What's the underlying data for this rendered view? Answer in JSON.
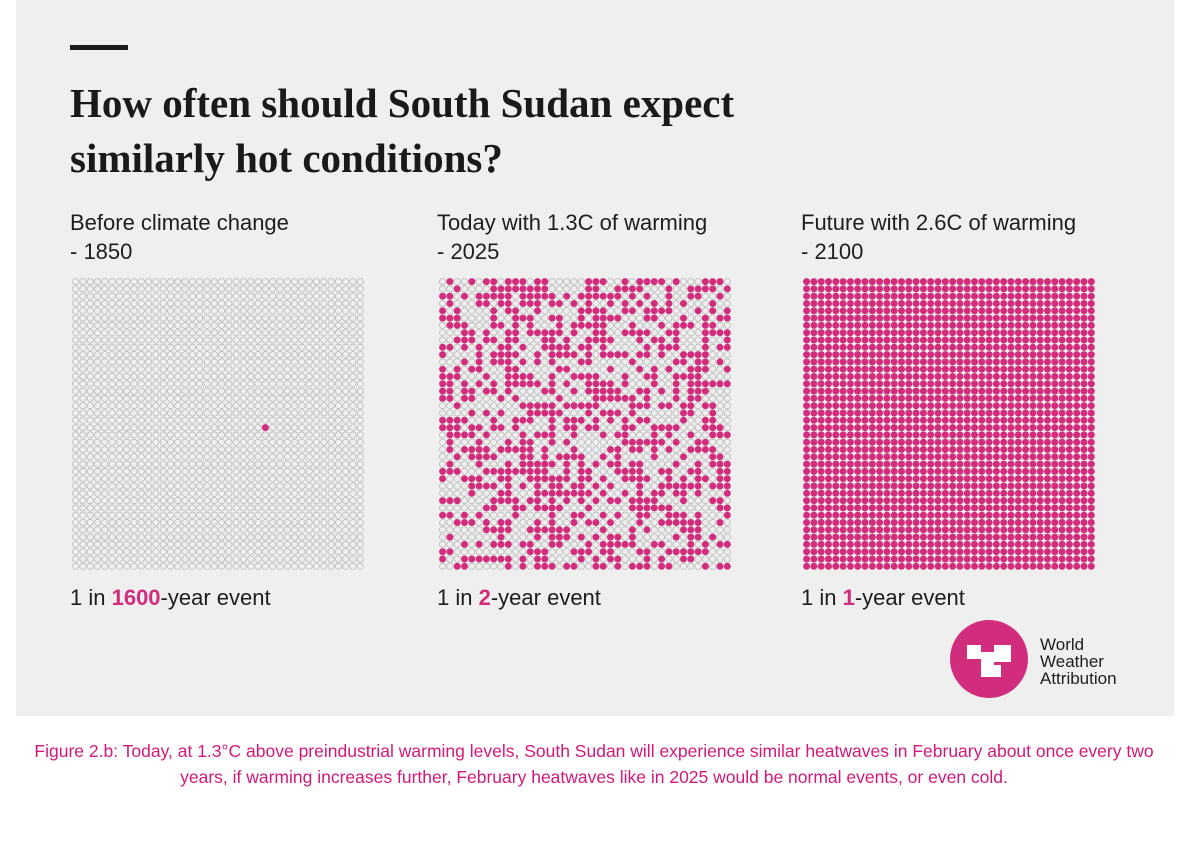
{
  "headline_line1": "How often should South Sudan expect",
  "headline_line2": "similarly hot conditions?",
  "colors": {
    "accent": "#d22d7c",
    "empty_dot_stroke": "#b9b9b9",
    "text": "#1e1e1e",
    "caption": "#d2197b",
    "panel_background": "#efefef"
  },
  "chart_data": {
    "type": "waffle",
    "grid_rows": 40,
    "grid_cols": 40,
    "total_dots": 1600,
    "panels": [
      {
        "title_line1": "Before climate change",
        "title_line2": "- 1850",
        "result_prefix": "1 in ",
        "result_value": "1600",
        "result_suffix": "-year event",
        "return_period_years": 1600,
        "highlighted_fraction": 0.000625
      },
      {
        "title_line1": "Today with 1.3C of warming",
        "title_line2": "- 2025",
        "result_prefix": "1 in ",
        "result_value": "2",
        "result_suffix": "-year event",
        "return_period_years": 2,
        "highlighted_fraction": 0.5
      },
      {
        "title_line1": "Future with 2.6C of warming",
        "title_line2": "- 2100",
        "result_prefix": "1 in ",
        "result_value": "1",
        "result_suffix": "-year event",
        "return_period_years": 1,
        "highlighted_fraction": 1.0
      }
    ]
  },
  "logo": {
    "line1": "World",
    "line2": "Weather",
    "line3": "Attribution"
  },
  "caption": "Figure 2.b: Today, at 1.3°C above preindustrial warming levels, South Sudan will experience similar heatwaves in February about once every two years, if warming increases further, February heatwaves like in 2025 would be normal events, or even cold."
}
